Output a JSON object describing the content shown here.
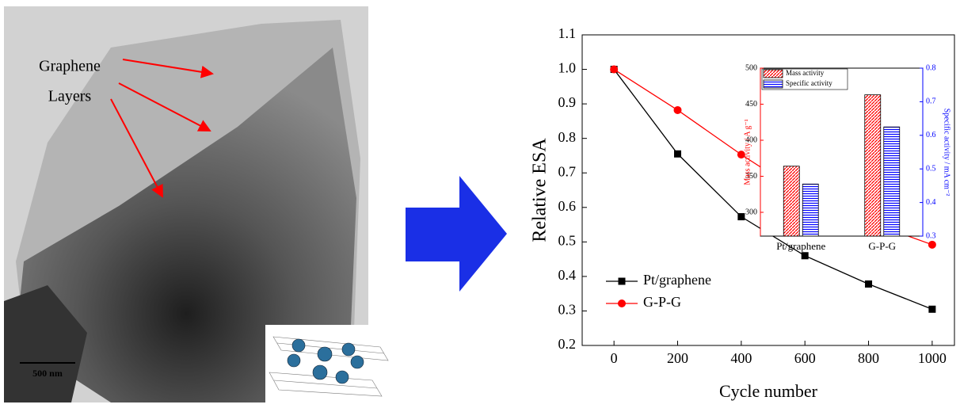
{
  "image": {
    "label_lines": [
      "Graphene",
      "Layers"
    ],
    "scale_bar": "500 nm"
  },
  "chart_data": [
    {
      "type": "line",
      "xlabel": "Cycle number",
      "ylabel": "Relative ESA",
      "x": [
        0,
        200,
        400,
        600,
        800,
        1000
      ],
      "series": [
        {
          "name": "Pt/graphene",
          "color": "#000000",
          "marker": "square",
          "values": [
            1.0,
            0.755,
            0.573,
            0.46,
            0.378,
            0.305
          ]
        },
        {
          "name": "G-P-G",
          "color": "#ff0000",
          "marker": "circle",
          "values": [
            1.0,
            0.882,
            0.753,
            0.634,
            0.558,
            0.492
          ]
        }
      ],
      "xlim": [
        -100,
        1070
      ],
      "xticks": [
        0,
        200,
        400,
        600,
        800,
        1000
      ],
      "ylim": [
        0.2,
        1.1
      ],
      "yticks": [
        0.2,
        0.3,
        0.4,
        0.5,
        0.6,
        0.7,
        0.8,
        0.9,
        {
          "value": 1,
          "label": "1.0"
        },
        1.1
      ],
      "legend": "lower left"
    },
    {
      "type": "bar",
      "ylabel": "Mass activity / A g⁻¹",
      "y2label": "Specific activity / mA cm⁻²",
      "categories": [
        "Pt/graphene",
        "G-P-G"
      ],
      "series": [
        {
          "name": "Mass activity",
          "color": "#ff0000",
          "values": [
            364,
            463
          ]
        },
        {
          "name": "Specific activity",
          "color": "#0000ff",
          "axis": "y2",
          "values": [
            0.455,
            0.625
          ]
        }
      ],
      "ylim": [
        267,
        500
      ],
      "yticks": [
        300,
        350,
        400,
        450,
        500
      ],
      "y2lim": [
        0.3,
        0.8
      ],
      "y2ticks": [
        0.3,
        0.4,
        0.5,
        0.6,
        0.7,
        0.8
      ],
      "legend": "upper left"
    }
  ]
}
